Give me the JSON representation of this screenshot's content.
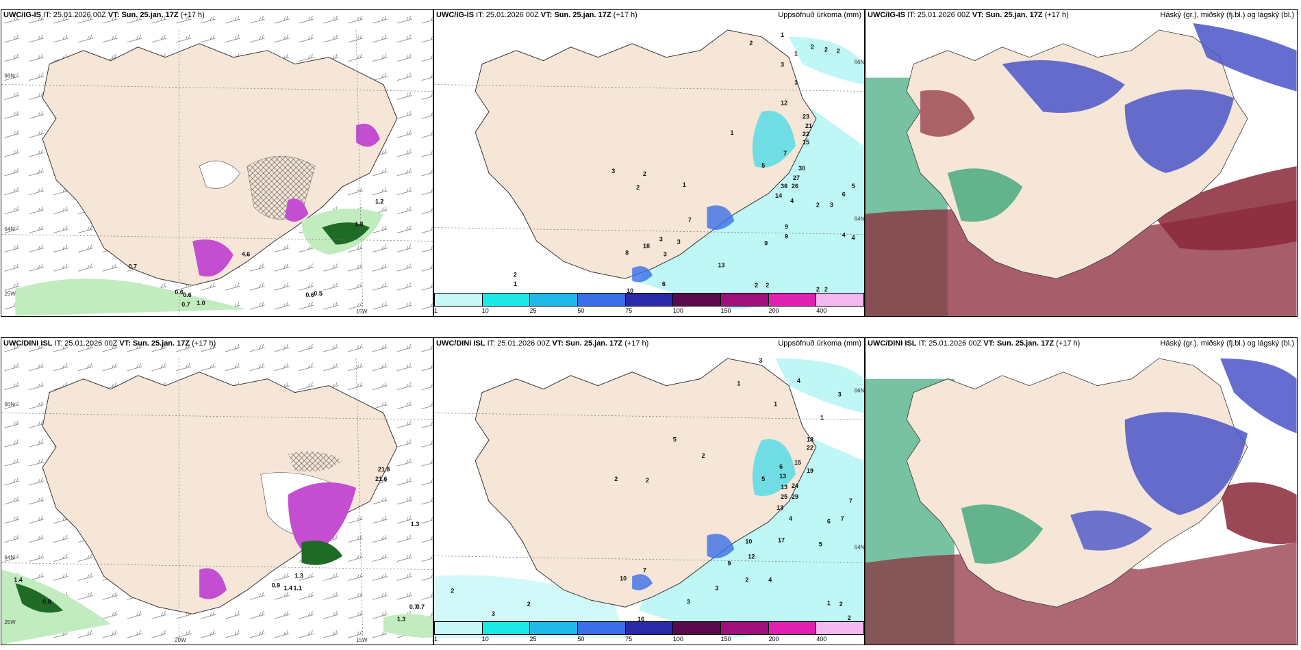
{
  "panels": [
    {
      "id": "top-left",
      "model": "UWC/IG-IS",
      "it_label": "IT:",
      "it_value": "25.01.2026 00Z",
      "vt_label": "VT:",
      "vt_value": "Sun. 25.jan. 17Z",
      "lead": "(+17 h)",
      "right_title": "",
      "graticule": [
        "66N",
        "64N",
        "25W",
        "15W"
      ],
      "labels": [
        "1.2",
        "1.8",
        "0.7",
        "0.6",
        "0.6",
        "0.7",
        "1.0",
        "0.6",
        "0.5",
        "4.6"
      ]
    },
    {
      "id": "top-middle",
      "model": "UWC/IG-IS",
      "it_label": "IT:",
      "it_value": "25.01.2026 00Z",
      "vt_label": "VT:",
      "vt_value": "Sun. 25.jan. 17Z",
      "lead": "(+17 h)",
      "right_title": "Uppsöfnuð úrkoma (mm)",
      "graticule": [
        "66N",
        "64N"
      ],
      "labels": [
        "2",
        "1",
        "1",
        "2",
        "2",
        "2",
        "1",
        "3",
        "1",
        "12",
        "23",
        "21",
        "22",
        "15",
        "7",
        "5",
        "30",
        "27",
        "36",
        "26",
        "14",
        "4",
        "2",
        "3",
        "6",
        "5",
        "9",
        "9",
        "4",
        "4",
        "9",
        "13",
        "6",
        "2",
        "2",
        "2",
        "2",
        "10",
        "2",
        "1",
        "3",
        "2",
        "2",
        "1",
        "3",
        "8",
        "18",
        "3",
        "3",
        "7"
      ]
    },
    {
      "id": "top-right",
      "model": "UWC/IG-IS",
      "it_label": "IT:",
      "it_value": "25.01.2026 00Z",
      "vt_label": "VT:",
      "vt_value": "Sun. 25.jan. 17Z",
      "lead": "(+17 h)",
      "right_title": "Háský (gr.), miðský (fj.bl.) og lágský (bl.)",
      "graticule": [],
      "labels": []
    },
    {
      "id": "bottom-left",
      "model": "UWC/DINI ISL",
      "it_label": "IT:",
      "it_value": "25.01.2026 00Z",
      "vt_label": "VT:",
      "vt_value": "Sun. 25.jan. 17Z",
      "lead": "(+17 h)",
      "right_title": "",
      "graticule": [
        "66N",
        "64N",
        "25W",
        "20W",
        "15W"
      ],
      "labels": [
        "1.4",
        "0.8",
        "1.3",
        "1.3",
        "0.7",
        "0.7",
        "0.9",
        "1.4",
        "1.1",
        "1.3",
        "21.8",
        "21.6"
      ]
    },
    {
      "id": "bottom-middle",
      "model": "UWC/DINI ISL",
      "it_label": "IT:",
      "it_value": "25.01.2026 00Z",
      "vt_label": "VT:",
      "vt_value": "Sun. 25.jan. 17Z",
      "lead": "(+17 h)",
      "right_title": "Uppsöfnuð úrkoma (mm)",
      "graticule": [
        "66N",
        "64N"
      ],
      "labels": [
        "3",
        "4",
        "1",
        "1",
        "3",
        "1",
        "18",
        "22",
        "15",
        "19",
        "13",
        "6",
        "5",
        "13",
        "24",
        "25",
        "29",
        "13",
        "7",
        "6",
        "7",
        "4",
        "5",
        "17",
        "10",
        "12",
        "9",
        "2",
        "3",
        "4",
        "1",
        "2",
        "2",
        "5",
        "2",
        "2",
        "2",
        "2",
        "3",
        "2",
        "3",
        "10",
        "7",
        "16"
      ]
    },
    {
      "id": "bottom-right",
      "model": "UWC/DINI ISL",
      "it_label": "IT:",
      "it_value": "25.01.2026 00Z",
      "vt_label": "VT:",
      "vt_value": "Sun. 25.jan. 17Z",
      "lead": "(+17 h)",
      "right_title": "Háský (gr.), miðský (fj.bl.) og lágský (bl.)",
      "graticule": [],
      "labels": []
    }
  ],
  "colorbar": {
    "ticks": [
      "1",
      "10",
      "25",
      "50",
      "75",
      "100",
      "150",
      "200",
      "400"
    ],
    "colors": [
      "#c8f7f7",
      "#1fe8e8",
      "#20b8e8",
      "#3b6fe8",
      "#2a2aa8",
      "#5a0a4a",
      "#a0107a",
      "#e020b0",
      "#f4b8f0"
    ]
  },
  "colors": {
    "land": "#f5e6d8",
    "land_precip": "#fbf0e4",
    "sea": "#ffffff",
    "precip_light": "#bff6f6",
    "precip_mid": "#38d8ea",
    "green_light": "#c2ecc0",
    "green_dark": "#1f6b26",
    "magenta": "#c44ed2",
    "cloud_high": "#3fa67a",
    "cloud_mid": "#8a2838",
    "cloud_low": "#4a55c8"
  }
}
